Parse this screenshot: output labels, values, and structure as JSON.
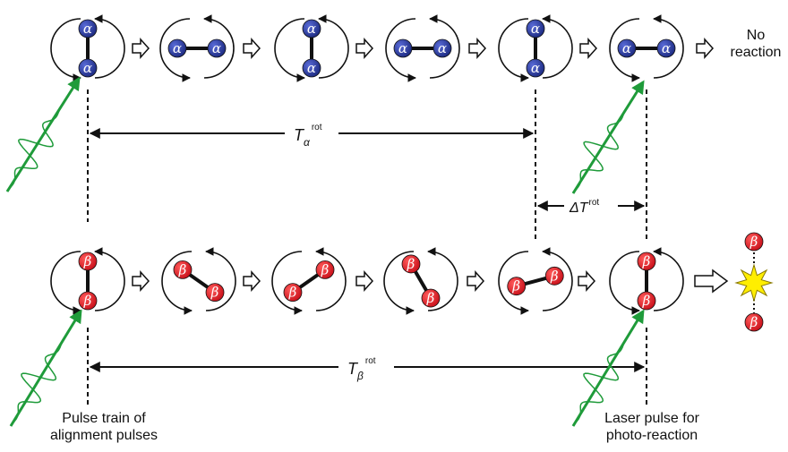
{
  "labels": {
    "no_reaction": "No\nreaction",
    "period_alpha": {
      "symbol": "T",
      "sub": "α",
      "sup": "rot"
    },
    "period_beta": {
      "symbol": "T",
      "sub": "β",
      "sup": "rot"
    },
    "delta_t": {
      "symbol": "ΔT",
      "sup": "rot"
    },
    "pulse_train": "Pulse train of\nalignment pulses",
    "laser_pulse": "Laser pulse for\nphoto-reaction"
  },
  "molecules": {
    "alpha": {
      "atom_label": "α",
      "color": "#2b3a9a"
    },
    "beta": {
      "atom_label": "β",
      "color": "#e8202a"
    }
  },
  "colors": {
    "pulse": "#1f9b3a",
    "star": "#ffee00"
  }
}
